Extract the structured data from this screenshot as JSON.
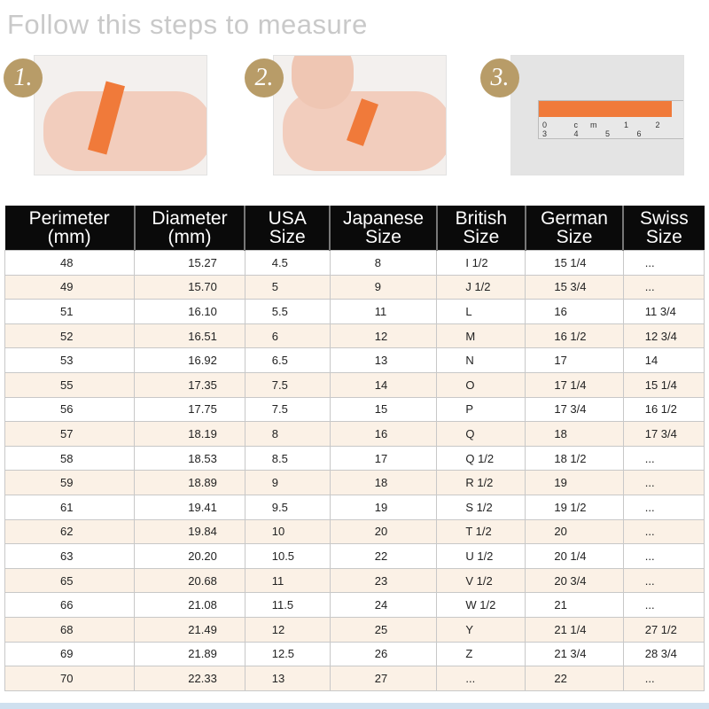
{
  "title": "Follow this steps to measure",
  "steps": [
    {
      "number": "1.",
      "icon": "hand-wrapping-paper-strip-photo"
    },
    {
      "number": "2.",
      "icon": "hand-marking-paper-strip-photo"
    },
    {
      "number": "3.",
      "icon": "paper-strip-on-ruler-photo",
      "ruler_marks": "0 cm 1 2 3 4 5 6"
    }
  ],
  "table": {
    "headers": [
      [
        "Perimeter",
        "(mm)"
      ],
      [
        "Diameter",
        "(mm)"
      ],
      [
        "USA",
        "Size"
      ],
      [
        "Japanese",
        "Size"
      ],
      [
        "British",
        "Size"
      ],
      [
        "German",
        "Size"
      ],
      [
        "Swiss",
        "Size"
      ]
    ],
    "rows": [
      [
        "48",
        "15.27",
        "4.5",
        "8",
        "I 1/2",
        "15 1/4",
        "..."
      ],
      [
        "49",
        "15.70",
        "5",
        "9",
        "J 1/2",
        "15 3/4",
        "..."
      ],
      [
        "51",
        "16.10",
        "5.5",
        "11",
        "L",
        "16",
        "11 3/4"
      ],
      [
        "52",
        "16.51",
        "6",
        "12",
        "M",
        "16 1/2",
        "12 3/4"
      ],
      [
        "53",
        "16.92",
        "6.5",
        "13",
        "N",
        "17",
        "14"
      ],
      [
        "55",
        "17.35",
        "7.5",
        "14",
        "O",
        "17 1/4",
        "15 1/4"
      ],
      [
        "56",
        "17.75",
        "7.5",
        "15",
        "P",
        "17 3/4",
        "16 1/2"
      ],
      [
        "57",
        "18.19",
        "8",
        "16",
        "Q",
        "18",
        "17 3/4"
      ],
      [
        "58",
        "18.53",
        "8.5",
        "17",
        "Q 1/2",
        "18 1/2",
        "..."
      ],
      [
        "59",
        "18.89",
        "9",
        "18",
        "R 1/2",
        "19",
        "..."
      ],
      [
        "61",
        "19.41",
        "9.5",
        "19",
        "S 1/2",
        "19 1/2",
        "..."
      ],
      [
        "62",
        "19.84",
        "10",
        "20",
        "T 1/2",
        "20",
        "..."
      ],
      [
        "63",
        "20.20",
        "10.5",
        "22",
        "U 1/2",
        "20 1/4",
        "..."
      ],
      [
        "65",
        "20.68",
        "11",
        "23",
        "V 1/2",
        "20 3/4",
        "..."
      ],
      [
        "66",
        "21.08",
        "11.5",
        "24",
        "W 1/2",
        "21",
        "..."
      ],
      [
        "68",
        "21.49",
        "12",
        "25",
        "Y",
        "21 1/4",
        "27 1/2"
      ],
      [
        "69",
        "21.89",
        "12.5",
        "26",
        "Z",
        "21 3/4",
        "28 3/4"
      ],
      [
        "70",
        "22.33",
        "13",
        "27",
        "...",
        "22",
        "..."
      ]
    ]
  },
  "colors": {
    "header_bg": "#0a0a0a",
    "alt_row": "#fbf1e6",
    "badge": "#b89c68",
    "tape": "#f07a3a"
  }
}
